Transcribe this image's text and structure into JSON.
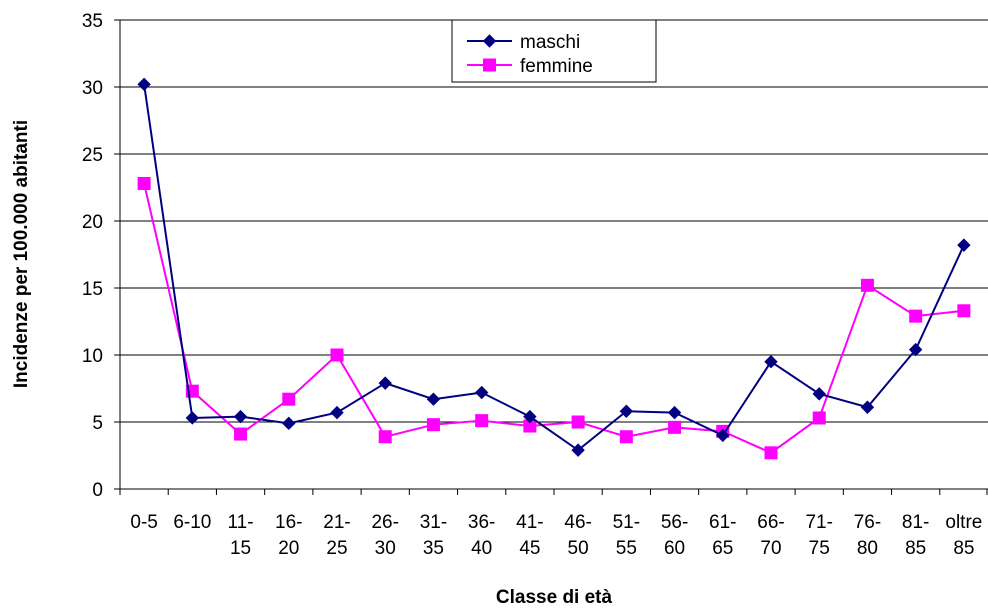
{
  "chart_data": {
    "type": "line",
    "title": "",
    "xlabel": "Classe di età",
    "ylabel": "Incidenze per 100.000 abitanti",
    "ylim": [
      0,
      35
    ],
    "yticks": [
      "0",
      "5",
      "10",
      "15",
      "20",
      "25",
      "30",
      "35"
    ],
    "grid": true,
    "legend_position": "top-center",
    "categories": [
      [
        "0-5"
      ],
      [
        "6-10"
      ],
      [
        "11-",
        "15"
      ],
      [
        "16-",
        "20"
      ],
      [
        "21-",
        "25"
      ],
      [
        "26-",
        "30"
      ],
      [
        "31-",
        "35"
      ],
      [
        "36-",
        "40"
      ],
      [
        "41-",
        "45"
      ],
      [
        "46-",
        "50"
      ],
      [
        "51-",
        "55"
      ],
      [
        "56-",
        "60"
      ],
      [
        "61-",
        "65"
      ],
      [
        "66-",
        "70"
      ],
      [
        "71-",
        "75"
      ],
      [
        "76-",
        "80"
      ],
      [
        "81-",
        "85"
      ],
      [
        "oltre",
        "85"
      ]
    ],
    "series": [
      {
        "name": "maschi",
        "color": "#000080",
        "marker": "diamond",
        "values": [
          30.2,
          5.3,
          5.4,
          4.9,
          5.7,
          7.9,
          6.7,
          7.2,
          5.4,
          2.9,
          5.8,
          5.7,
          4.0,
          9.5,
          7.1,
          6.1,
          10.4,
          18.2
        ]
      },
      {
        "name": "femmine",
        "color": "#FF00FF",
        "marker": "square",
        "values": [
          22.8,
          7.3,
          4.1,
          6.7,
          10.0,
          3.9,
          4.8,
          5.1,
          4.7,
          5.0,
          3.9,
          4.6,
          4.3,
          2.7,
          5.3,
          15.2,
          12.9,
          13.3
        ]
      }
    ]
  }
}
